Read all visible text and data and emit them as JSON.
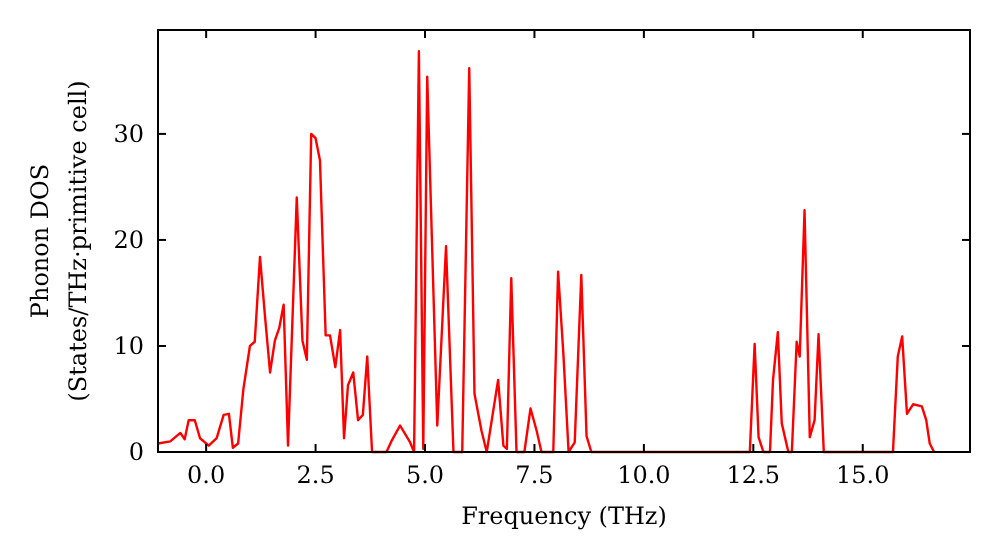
{
  "chart_data": {
    "type": "line",
    "xlabel": "Frequency (THz)",
    "ylabel": "Phonon DOS\n(States/THz·primitive cell)",
    "xlim": [
      -1.1,
      17.45
    ],
    "ylim": [
      0,
      39.8
    ],
    "xticks": [
      {
        "value": 0,
        "label": "0.0"
      },
      {
        "value": 2.5,
        "label": "2.5"
      },
      {
        "value": 5,
        "label": "5.0"
      },
      {
        "value": 7.5,
        "label": "7.5"
      },
      {
        "value": 10,
        "label": "10.0"
      },
      {
        "value": 12.5,
        "label": "12.5"
      },
      {
        "value": 15,
        "label": "15.0"
      }
    ],
    "yticks": [
      0,
      10,
      20,
      30
    ],
    "grid": false,
    "marker": "none",
    "line_style": "solid",
    "series": [
      {
        "color": "#ff0000",
        "x": [
          -1.1,
          -0.82,
          -0.59,
          -0.49,
          -0.4,
          -0.26,
          -0.14,
          0.06,
          0.24,
          0.4,
          0.52,
          0.61,
          0.73,
          0.85,
          1.0,
          1.11,
          1.23,
          1.34,
          1.46,
          1.57,
          1.67,
          1.77,
          1.87,
          2.07,
          2.2,
          2.3,
          2.4,
          2.5,
          2.6,
          2.73,
          2.83,
          2.95,
          3.06,
          3.15,
          3.24,
          3.36,
          3.47,
          3.58,
          3.68,
          3.79,
          4.12,
          4.23,
          4.43,
          4.66,
          4.75,
          4.86,
          4.96,
          5.05,
          5.28,
          5.48,
          5.65,
          5.85,
          6.01,
          6.13,
          6.29,
          6.41,
          6.67,
          6.79,
          6.87,
          6.97,
          7.09,
          7.27,
          7.41,
          7.55,
          7.66,
          7.93,
          8.04,
          8.16,
          8.28,
          8.42,
          8.57,
          8.69,
          8.8,
          12.42,
          12.53,
          12.62,
          12.73,
          12.88,
          12.95,
          13.06,
          13.15,
          13.3,
          13.38,
          13.49,
          13.56,
          13.67,
          13.79,
          13.9,
          13.99,
          14.11,
          15.69,
          15.8,
          15.9,
          16.01,
          16.15,
          16.35,
          16.45,
          16.53,
          16.63
        ],
        "values": [
          0.8,
          1,
          1.8,
          1.2,
          3,
          3,
          1.3,
          0.6,
          1.3,
          3.5,
          3.6,
          0.4,
          0.8,
          5.9,
          10,
          10.4,
          18.4,
          13,
          7.5,
          10.5,
          11.7,
          13.9,
          0.6,
          24,
          10.5,
          8.7,
          30,
          29.6,
          27.5,
          11,
          11,
          8,
          11.5,
          1.3,
          6.3,
          7.5,
          3,
          3.5,
          9,
          0,
          0,
          1,
          2.5,
          0.9,
          0,
          37.8,
          0.3,
          35.4,
          2.5,
          19.4,
          0,
          0,
          36.2,
          5.5,
          2,
          0,
          6.8,
          0.6,
          0.3,
          16.4,
          0,
          0,
          4.1,
          2,
          0,
          0,
          17,
          9.3,
          0,
          0.9,
          16.7,
          1.5,
          0,
          0,
          10.2,
          1.4,
          0,
          0,
          6.8,
          11.3,
          2.7,
          0,
          0,
          10.4,
          9,
          22.8,
          1.4,
          3,
          11.1,
          0,
          0,
          9,
          10.9,
          3.6,
          4.5,
          4.3,
          3,
          0.8,
          0
        ]
      }
    ]
  }
}
